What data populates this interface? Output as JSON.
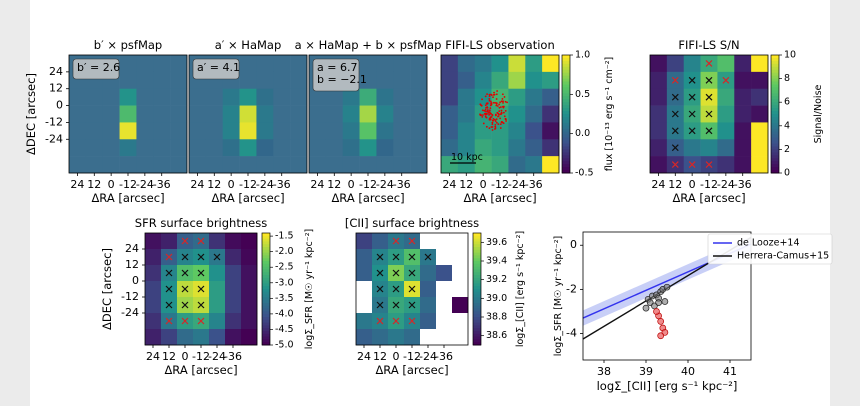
{
  "figure": {
    "background_left": "#ebebeb",
    "background_right": "#ebebeb"
  },
  "colors": {
    "viridis_dark": "#440154",
    "map_bg": "#3b6e8e",
    "cross_black": "#111111",
    "cross_red": "#d62728",
    "scatter_red": "#e8585a",
    "delooze_line": "#3333ee",
    "delooze_band": "#9aa7f0",
    "herrera_line": "#111111"
  },
  "chart_data": [
    {
      "id": "psfmap",
      "type": "heatmap",
      "title": "b′ × psfMap",
      "annotation_lines": [
        "b′ = 2.6"
      ],
      "xlabel": "ΔRA [arcsec]",
      "ylabel": "ΔDEC [arcsec]",
      "xticks": [
        "24",
        "12",
        "0",
        "-12",
        "-24",
        "-36"
      ],
      "yticks": [
        "24",
        "12",
        "0",
        "-12",
        "-24"
      ],
      "levels": [
        [
          0,
          0,
          0,
          0,
          0,
          0,
          0
        ],
        [
          0,
          0,
          0,
          0,
          0,
          0,
          0
        ],
        [
          0,
          0,
          0,
          0.3,
          0,
          0,
          0
        ],
        [
          0,
          0,
          0,
          0.55,
          0,
          0,
          0
        ],
        [
          0,
          0,
          0,
          0.95,
          0,
          0,
          0
        ],
        [
          0,
          0,
          0,
          0.15,
          0,
          0,
          0
        ],
        [
          0,
          0,
          0,
          0,
          0,
          0,
          0
        ]
      ]
    },
    {
      "id": "hamap",
      "type": "heatmap",
      "title": "a′ × HaMap",
      "annotation_lines": [
        "a′ = 4.1"
      ],
      "xlabel": "ΔRA [arcsec]",
      "xticks": [
        "24",
        "12",
        "0",
        "-12",
        "-24",
        "-36"
      ],
      "levels": [
        [
          0,
          0,
          0,
          0,
          0,
          0,
          0
        ],
        [
          0,
          0,
          0,
          0,
          0,
          0,
          0
        ],
        [
          0,
          0,
          0.15,
          0.3,
          0.1,
          0,
          0
        ],
        [
          0,
          0,
          0.2,
          0.9,
          0.15,
          0,
          0
        ],
        [
          0,
          0,
          0.2,
          0.95,
          0.15,
          0,
          0
        ],
        [
          0,
          0,
          0.1,
          0.3,
          0.05,
          0,
          0
        ],
        [
          0,
          0,
          0,
          0,
          0,
          0,
          0
        ]
      ]
    },
    {
      "id": "combo",
      "type": "heatmap",
      "title": "a × HaMap + b × psfMap",
      "annotation_lines": [
        "a = 6.7",
        "b = −2.1"
      ],
      "xlabel": "ΔRA [arcsec]",
      "xticks": [
        "24",
        "12",
        "0",
        "-12",
        "-24",
        "-36"
      ],
      "levels": [
        [
          0,
          0,
          0,
          0,
          0,
          0,
          0
        ],
        [
          0,
          0,
          0,
          0,
          0,
          0,
          0
        ],
        [
          0,
          0,
          0.15,
          0.45,
          0.12,
          0,
          0
        ],
        [
          0,
          0,
          0.2,
          0.8,
          0.2,
          0,
          0
        ],
        [
          0,
          0,
          0.15,
          0.6,
          0.12,
          0,
          0
        ],
        [
          0,
          0,
          0.1,
          0.3,
          0.05,
          0,
          0
        ],
        [
          0,
          0,
          0,
          0,
          0,
          0,
          0
        ]
      ]
    },
    {
      "id": "fifi",
      "type": "heatmap",
      "title": "FIFI-LS observation",
      "xlabel": "ΔRA [arcsec]",
      "xticks": [
        "24",
        "12",
        "0",
        "-12",
        "-24",
        "-36"
      ],
      "scale_label": "10 kpc",
      "colorbar": {
        "label": "flux [10⁻¹³ erg s⁻¹ cm⁻²]",
        "ticks": [
          "1.0",
          "0.5",
          "0.0",
          "-0.5"
        ],
        "range": [
          -0.5,
          1.0
        ]
      },
      "levels": [
        [
          0.2,
          0.35,
          0.4,
          0.5,
          0.92,
          0.55,
          1.0
        ],
        [
          0.2,
          0.3,
          0.45,
          0.6,
          0.85,
          0.5,
          0.55
        ],
        [
          0.2,
          0.4,
          0.5,
          0.65,
          0.55,
          0.4,
          0.3
        ],
        [
          0.3,
          0.4,
          0.55,
          0.6,
          0.5,
          0.35,
          0.15
        ],
        [
          0.3,
          0.45,
          0.55,
          0.55,
          0.45,
          0.25,
          0.05
        ],
        [
          0.35,
          0.45,
          0.6,
          0.55,
          0.4,
          0.3,
          0.15
        ],
        [
          0.6,
          0.55,
          0.65,
          0.6,
          0.35,
          0.4,
          1.0
        ]
      ]
    },
    {
      "id": "sn",
      "type": "heatmap",
      "title": "FIFI-LS S/N",
      "xlabel": "ΔRA [arcsec]",
      "xticks": [
        "24",
        "12",
        "0",
        "-12",
        "-24",
        "-36"
      ],
      "colorbar": {
        "label": "Signal/Noise",
        "ticks": [
          "10",
          "8",
          "6",
          "4",
          "2",
          "0"
        ],
        "range": [
          0,
          10
        ]
      },
      "levels": [
        [
          0.05,
          0.2,
          0.45,
          0.6,
          0.7,
          0.1,
          1.0
        ],
        [
          0.1,
          0.35,
          0.5,
          0.8,
          0.55,
          0.05,
          0.05
        ],
        [
          0.1,
          0.35,
          0.55,
          0.95,
          0.6,
          0.1,
          0.15
        ],
        [
          0.15,
          0.4,
          0.6,
          0.9,
          0.55,
          0.1,
          0.05
        ],
        [
          0.15,
          0.4,
          0.55,
          0.7,
          0.5,
          0.05,
          1.0
        ],
        [
          0.1,
          0.3,
          0.4,
          0.45,
          0.35,
          0.05,
          1.0
        ],
        [
          0.05,
          0.15,
          0.25,
          0.2,
          0.15,
          0.05,
          1.0
        ]
      ],
      "crosses": [
        {
          "r": 0,
          "c": 3,
          "color": "red"
        },
        {
          "r": 1,
          "c": 1,
          "color": "red"
        },
        {
          "r": 1,
          "c": 2,
          "color": "black"
        },
        {
          "r": 1,
          "c": 3,
          "color": "black"
        },
        {
          "r": 1,
          "c": 4,
          "color": "red"
        },
        {
          "r": 2,
          "c": 1,
          "color": "black"
        },
        {
          "r": 2,
          "c": 2,
          "color": "black"
        },
        {
          "r": 2,
          "c": 3,
          "color": "black"
        },
        {
          "r": 3,
          "c": 1,
          "color": "black"
        },
        {
          "r": 3,
          "c": 2,
          "color": "black"
        },
        {
          "r": 3,
          "c": 3,
          "color": "black"
        },
        {
          "r": 4,
          "c": 1,
          "color": "black"
        },
        {
          "r": 4,
          "c": 2,
          "color": "black"
        },
        {
          "r": 4,
          "c": 3,
          "color": "black"
        },
        {
          "r": 5,
          "c": 1,
          "color": "black"
        },
        {
          "r": 6,
          "c": 1,
          "color": "red"
        },
        {
          "r": 6,
          "c": 2,
          "color": "red"
        },
        {
          "r": 6,
          "c": 3,
          "color": "red"
        }
      ]
    },
    {
      "id": "sfr",
      "type": "heatmap",
      "title": "SFR surface brightness",
      "xlabel": "ΔRA [arcsec]",
      "ylabel": "ΔDEC [arcsec]",
      "xticks": [
        "24",
        "12",
        "0",
        "-12",
        "-24",
        "-36"
      ],
      "yticks": [
        "24",
        "12",
        "0",
        "-12",
        "-24"
      ],
      "colorbar": {
        "label": "logΣ_SFR [M☉ yr⁻¹ kpc⁻²]",
        "ticks": [
          "-1.5",
          "-2.0",
          "-2.5",
          "-3.0",
          "-3.5",
          "-4.0",
          "-4.5",
          "-5.0"
        ],
        "range": [
          -5.0,
          -1.4
        ]
      },
      "levels": [
        [
          0.05,
          0.1,
          0.3,
          0.35,
          0.15,
          0.03,
          0.0
        ],
        [
          0.1,
          0.3,
          0.45,
          0.5,
          0.4,
          0.12,
          0.02
        ],
        [
          0.15,
          0.45,
          0.7,
          0.75,
          0.5,
          0.2,
          0.05
        ],
        [
          0.2,
          0.5,
          0.9,
          0.95,
          0.55,
          0.2,
          0.05
        ],
        [
          0.2,
          0.5,
          0.85,
          0.9,
          0.55,
          0.2,
          0.05
        ],
        [
          0.15,
          0.4,
          0.55,
          0.6,
          0.45,
          0.15,
          0.05
        ],
        [
          0.1,
          0.2,
          0.35,
          0.4,
          0.25,
          0.05,
          0.0
        ]
      ],
      "crosses": [
        {
          "r": 0,
          "c": 2,
          "color": "red"
        },
        {
          "r": 0,
          "c": 3,
          "color": "red"
        },
        {
          "r": 1,
          "c": 1,
          "color": "red"
        },
        {
          "r": 1,
          "c": 2,
          "color": "black"
        },
        {
          "r": 1,
          "c": 3,
          "color": "black"
        },
        {
          "r": 1,
          "c": 4,
          "color": "black"
        },
        {
          "r": 2,
          "c": 1,
          "color": "black"
        },
        {
          "r": 2,
          "c": 2,
          "color": "black"
        },
        {
          "r": 2,
          "c": 3,
          "color": "black"
        },
        {
          "r": 3,
          "c": 1,
          "color": "black"
        },
        {
          "r": 3,
          "c": 2,
          "color": "black"
        },
        {
          "r": 3,
          "c": 3,
          "color": "black"
        },
        {
          "r": 4,
          "c": 1,
          "color": "black"
        },
        {
          "r": 4,
          "c": 2,
          "color": "black"
        },
        {
          "r": 4,
          "c": 3,
          "color": "black"
        },
        {
          "r": 5,
          "c": 1,
          "color": "red"
        },
        {
          "r": 5,
          "c": 2,
          "color": "red"
        },
        {
          "r": 5,
          "c": 3,
          "color": "red"
        }
      ]
    },
    {
      "id": "cii",
      "type": "heatmap",
      "title": "[CII] surface brightness",
      "xlabel": "ΔRA [arcsec]",
      "xticks": [
        "24",
        "12",
        "0",
        "-12",
        "-24",
        "-36"
      ],
      "colorbar": {
        "label": "logΣ_[CII] [erg s⁻¹ kpc⁻²]",
        "ticks": [
          "39.6",
          "39.4",
          "39.2",
          "39.0",
          "38.8",
          "38.6"
        ],
        "range": [
          38.5,
          39.7
        ]
      },
      "levels": [
        [
          0.2,
          0.3,
          0.4,
          0.35,
          1.0,
          1.0,
          1.0
        ],
        [
          0.3,
          0.45,
          0.55,
          0.7,
          0.4,
          1.0,
          1.0
        ],
        [
          0.3,
          0.5,
          0.8,
          0.6,
          0.35,
          0.25,
          1.0
        ],
        [
          1.0,
          0.45,
          0.55,
          0.95,
          0.3,
          1.0,
          1.0
        ],
        [
          1.0,
          0.4,
          0.6,
          0.55,
          0.35,
          1.0,
          0.0
        ],
        [
          0.4,
          0.45,
          0.55,
          0.45,
          0.3,
          1.0,
          1.0
        ],
        [
          0.3,
          0.35,
          0.4,
          0.35,
          1.0,
          1.0,
          1.0
        ]
      ],
      "blank": [
        [
          0,
          4
        ],
        [
          0,
          5
        ],
        [
          0,
          6
        ],
        [
          1,
          5
        ],
        [
          1,
          6
        ],
        [
          2,
          6
        ],
        [
          3,
          0
        ],
        [
          3,
          5
        ],
        [
          3,
          6
        ],
        [
          4,
          0
        ],
        [
          4,
          5
        ],
        [
          5,
          5
        ],
        [
          5,
          6
        ],
        [
          6,
          4
        ],
        [
          6,
          5
        ],
        [
          6,
          6
        ]
      ],
      "crosses": [
        {
          "r": 0,
          "c": 2,
          "color": "red"
        },
        {
          "r": 0,
          "c": 3,
          "color": "red"
        },
        {
          "r": 1,
          "c": 1,
          "color": "black"
        },
        {
          "r": 1,
          "c": 2,
          "color": "black"
        },
        {
          "r": 1,
          "c": 3,
          "color": "black"
        },
        {
          "r": 1,
          "c": 4,
          "color": "black"
        },
        {
          "r": 2,
          "c": 1,
          "color": "black"
        },
        {
          "r": 2,
          "c": 2,
          "color": "black"
        },
        {
          "r": 2,
          "c": 3,
          "color": "black"
        },
        {
          "r": 3,
          "c": 1,
          "color": "black"
        },
        {
          "r": 3,
          "c": 2,
          "color": "black"
        },
        {
          "r": 3,
          "c": 3,
          "color": "black"
        },
        {
          "r": 4,
          "c": 1,
          "color": "black"
        },
        {
          "r": 4,
          "c": 2,
          "color": "black"
        },
        {
          "r": 4,
          "c": 3,
          "color": "black"
        },
        {
          "r": 5,
          "c": 1,
          "color": "red"
        },
        {
          "r": 5,
          "c": 2,
          "color": "red"
        },
        {
          "r": 5,
          "c": 3,
          "color": "red"
        }
      ]
    },
    {
      "id": "scatter",
      "type": "scatter",
      "xlabel": "logΣ_[CII] [erg s⁻¹ kpc⁻²]",
      "ylabel": "logΣ_SFR [M☉ yr⁻¹ kpc⁻²]",
      "xlim": [
        37.5,
        41.5
      ],
      "ylim": [
        -5.2,
        0.6
      ],
      "xticks": [
        38,
        39,
        40,
        41
      ],
      "yticks": [
        0,
        -2,
        -4
      ],
      "legend": [
        "de Looze+14",
        "Herrera-Camus+15"
      ],
      "legend_position": "top-right",
      "lines": [
        {
          "name": "de Looze+14",
          "x": [
            37.5,
            41.5
          ],
          "y": [
            -3.3,
            0.05
          ],
          "band": 0.35
        },
        {
          "name": "Herrera-Camus+15",
          "x": [
            37.5,
            41.5
          ],
          "y": [
            -4.25,
            0.35
          ]
        }
      ],
      "points_black": [
        [
          39.05,
          -2.45
        ],
        [
          39.15,
          -2.3
        ],
        [
          39.1,
          -2.6
        ],
        [
          39.25,
          -2.25
        ],
        [
          39.3,
          -2.4
        ],
        [
          39.35,
          -2.1
        ],
        [
          39.4,
          -2.0
        ],
        [
          39.2,
          -2.75
        ],
        [
          39.45,
          -2.55
        ],
        [
          39.0,
          -2.85
        ],
        [
          39.3,
          -2.6
        ],
        [
          39.5,
          -1.9
        ]
      ],
      "points_red": [
        [
          39.3,
          -3.2
        ],
        [
          39.35,
          -3.45
        ],
        [
          39.4,
          -3.75
        ],
        [
          39.45,
          -3.95
        ],
        [
          39.35,
          -4.1
        ],
        [
          39.25,
          -3.0
        ]
      ]
    }
  ]
}
